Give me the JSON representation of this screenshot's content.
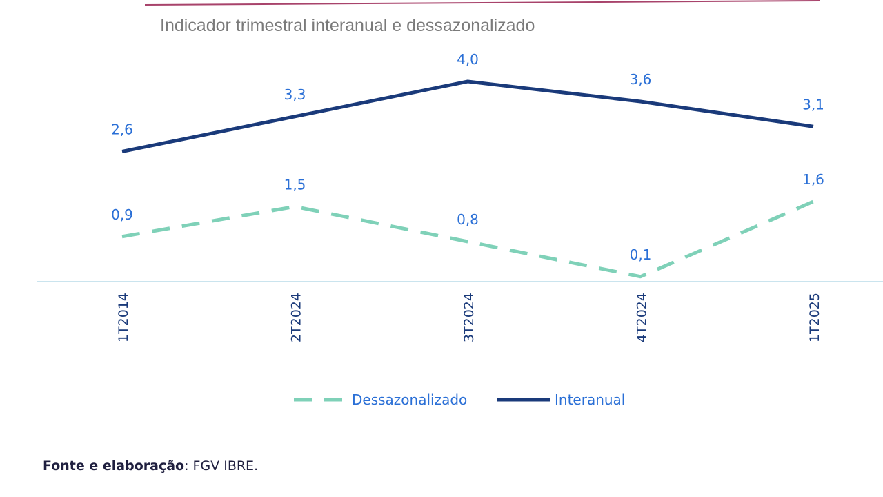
{
  "colors": {
    "interanual": "#1a3a7a",
    "dessazonalizado": "#7fd1b8",
    "label_text": "#2a6fd6",
    "tick_text": "#1a3a7a",
    "title_text": "#7a7a7a",
    "baseline": "#b9dbe8",
    "top_rule": "#a8436b"
  },
  "chart_data": {
    "type": "line",
    "title": "Indicador trimestral interanual e dessazonalizado",
    "categories": [
      "1T2014",
      "2T2024",
      "3T2024",
      "4T2024",
      "1T2025"
    ],
    "series": [
      {
        "name": "Dessazonalizado",
        "values": [
          0.9,
          1.5,
          0.8,
          0.1,
          1.6
        ],
        "labels": [
          "0,9",
          "1,5",
          "0,8",
          "0,1",
          "1,6"
        ],
        "style": "dashed"
      },
      {
        "name": "Interanual",
        "values": [
          2.6,
          3.3,
          4.0,
          3.6,
          3.1
        ],
        "labels": [
          "2,6",
          "3,3",
          "4,0",
          "3,6",
          "3,1"
        ],
        "style": "solid"
      }
    ],
    "legend": "bottom-center",
    "grid": false
  },
  "source": {
    "label": "Fonte e elaboração",
    "separator": ": ",
    "text": "FGV IBRE."
  }
}
